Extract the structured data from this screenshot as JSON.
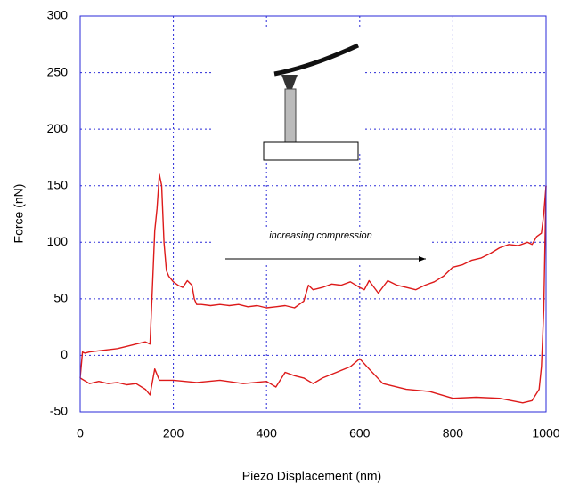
{
  "chart_data": {
    "type": "line",
    "x_label": "Piezo Displacement (nm)",
    "y_label": "Force (nN)",
    "annotation": "increasing compression",
    "xlim": [
      0,
      1000
    ],
    "ylim": [
      -50,
      300
    ],
    "xticks": [
      0,
      200,
      400,
      600,
      800,
      1000
    ],
    "yticks": [
      -50,
      0,
      50,
      100,
      150,
      200,
      250,
      300
    ],
    "grid": true,
    "series": [
      {
        "color": "#dd1a1a",
        "x": [
          0,
          5,
          10,
          20,
          40,
          60,
          80,
          100,
          120,
          140,
          150,
          155,
          160,
          165,
          170,
          175,
          180,
          185,
          190,
          200,
          210,
          220,
          230,
          240,
          245,
          250,
          260,
          280,
          300,
          320,
          340,
          360,
          380,
          400,
          420,
          440,
          460,
          480,
          490,
          500,
          520,
          540,
          560,
          580,
          600,
          610,
          620,
          640,
          660,
          680,
          700,
          720,
          740,
          760,
          780,
          800,
          820,
          840,
          860,
          880,
          900,
          920,
          940,
          960,
          970,
          980,
          990,
          995,
          1000
        ],
        "values": [
          -20,
          3,
          2,
          3,
          4,
          5,
          6,
          8,
          10,
          12,
          10,
          60,
          110,
          130,
          160,
          150,
          100,
          75,
          70,
          65,
          62,
          60,
          66,
          62,
          50,
          45,
          45,
          44,
          45,
          44,
          45,
          43,
          44,
          42,
          43,
          44,
          42,
          48,
          62,
          58,
          60,
          63,
          62,
          65,
          60,
          58,
          66,
          55,
          66,
          62,
          60,
          58,
          62,
          65,
          70,
          78,
          80,
          84,
          86,
          90,
          95,
          98,
          97,
          100,
          98,
          105,
          108,
          125,
          150
        ]
      },
      {
        "color": "#dd1a1a",
        "x": [
          0,
          20,
          40,
          60,
          80,
          100,
          120,
          140,
          150,
          160,
          170,
          200,
          250,
          300,
          350,
          400,
          420,
          440,
          460,
          480,
          500,
          520,
          550,
          580,
          600,
          620,
          650,
          700,
          750,
          800,
          850,
          900,
          950,
          970,
          985,
          990,
          995,
          1000
        ],
        "values": [
          -20,
          -25,
          -23,
          -25,
          -24,
          -26,
          -25,
          -30,
          -35,
          -12,
          -22,
          -22,
          -24,
          -22,
          -25,
          -23,
          -28,
          -15,
          -18,
          -20,
          -25,
          -20,
          -15,
          -10,
          -3,
          -12,
          -25,
          -30,
          -32,
          -38,
          -37,
          -38,
          -42,
          -40,
          -30,
          -10,
          40,
          150
        ]
      }
    ]
  }
}
